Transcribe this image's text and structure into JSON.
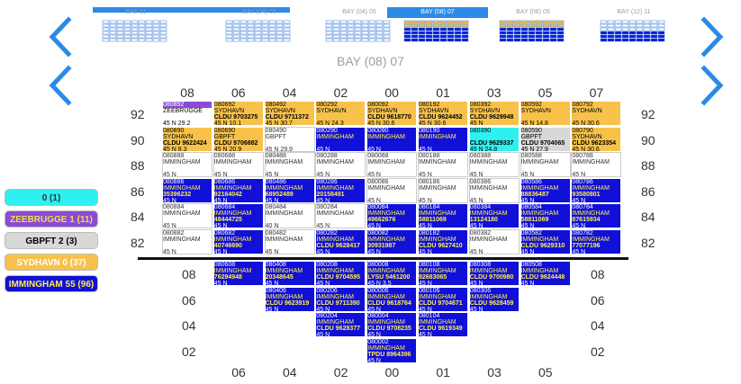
{
  "thumbnails": [
    {
      "label": "BAY 01"
    },
    {
      "label": "BAY (04) 03"
    },
    {
      "label": "BAY (04) 05"
    },
    {
      "label": "BAY (08) 07"
    },
    {
      "label": "BAY (08) 09"
    },
    {
      "label": "BAY (12) 11"
    }
  ],
  "active_thumb": "BAY (08) 07",
  "bay_title": "BAY (08) 07",
  "deck_columns": [
    "08",
    "06",
    "04",
    "02",
    "00",
    "01",
    "03",
    "05",
    "07"
  ],
  "deck_rows": [
    "92",
    "90",
    "88",
    "86",
    "84",
    "82"
  ],
  "hold_columns": [
    "06",
    "04",
    "02",
    "00",
    "01",
    "03",
    "05"
  ],
  "hold_rows": [
    "08",
    "06",
    "04",
    "02"
  ],
  "legend": [
    {
      "label": "0 (1)",
      "color": "#2ff0f0",
      "text": "#333"
    },
    {
      "label": "ZEEBRUGGE 1 (11)",
      "color": "#8b4ad8",
      "text": "#e8e04a"
    },
    {
      "label": "GBPFT 2 (3)",
      "color": "#d8d8d8",
      "text": "#000"
    },
    {
      "label": "SYDHAVN 0 (37)",
      "color": "#f8c24a",
      "text": "#fff"
    },
    {
      "label": "IMMINGHAM 55 (96)",
      "color": "#1010d8",
      "text": "#ffef4a"
    }
  ],
  "cells": [
    {
      "r": 0,
      "c": 0,
      "style": "purple",
      "id": "080892",
      "port": "ZEEBRUGGE",
      "cont": "",
      "info": "45    N    29.2"
    },
    {
      "r": 0,
      "c": 1,
      "style": "yellow",
      "id": "080692",
      "port": "SYDHAVN",
      "cont": "CLDU 9703275",
      "info": "45    N    10.1"
    },
    {
      "r": 0,
      "c": 2,
      "style": "yellow",
      "id": "080492",
      "port": "SYDHAVN",
      "cont": "CLDU 9711372",
      "info": "45    N    30.7"
    },
    {
      "r": 0,
      "c": 3,
      "style": "yellow",
      "id": "080292",
      "port": "SYDHAVN",
      "cont": "",
      "info": "45    N    24.3"
    },
    {
      "r": 0,
      "c": 4,
      "style": "yellow",
      "id": "080092",
      "port": "SYDHAVN",
      "cont": "CLDU 9618770",
      "info": "45    N    30.6"
    },
    {
      "r": 0,
      "c": 5,
      "style": "yellow",
      "id": "080192",
      "port": "SYDHAVN",
      "cont": "CLDU 9624452",
      "info": "45    N    30.6"
    },
    {
      "r": 0,
      "c": 6,
      "style": "yellow",
      "id": "080392",
      "port": "SYDHAVN",
      "cont": "CLDU 9629948",
      "info": "45    N"
    },
    {
      "r": 0,
      "c": 7,
      "style": "yellow",
      "id": "080592",
      "port": "SYDHAVN",
      "cont": "",
      "info": "45    N    14.8"
    },
    {
      "r": 0,
      "c": 8,
      "style": "yellow",
      "id": "080792",
      "port": "SYDHAVN",
      "cont": "",
      "info": "45    N    30.6"
    },
    {
      "r": 1,
      "c": 0,
      "style": "yellow",
      "id": "080890",
      "port": "SYDHAVN",
      "cont": "CLDU 9622424",
      "info": "45    N    8.3"
    },
    {
      "r": 1,
      "c": 1,
      "style": "yellow",
      "id": "080690",
      "port": "GBPFT",
      "cont": "CLDU 9706882",
      "info": "45    N    20.9"
    },
    {
      "r": 1,
      "c": 2,
      "style": "white",
      "id": "080490",
      "port": "GBPFT",
      "cont": "",
      "info": "45    N    29.9"
    },
    {
      "r": 1,
      "c": 3,
      "style": "blue",
      "id": "080290",
      "port": "IMMINGHAM",
      "cont": "",
      "info": "45    N"
    },
    {
      "r": 1,
      "c": 4,
      "style": "blue",
      "id": "080090",
      "port": "IMMINGHAM",
      "cont": "",
      "info": "45    N"
    },
    {
      "r": 1,
      "c": 5,
      "style": "blue",
      "id": "080190",
      "port": "IMMINGHAM",
      "cont": "",
      "info": "45    N"
    },
    {
      "r": 1,
      "c": 6,
      "style": "cyan",
      "id": "080390",
      "port": "",
      "cont": "CLDU 9629337",
      "info": "45    N    24.8"
    },
    {
      "r": 1,
      "c": 7,
      "style": "gray",
      "id": "080590",
      "port": "GBPFT",
      "cont": "CLDU 9704065",
      "info": "45    N    27.9"
    },
    {
      "r": 1,
      "c": 8,
      "style": "yellow",
      "id": "080790",
      "port": "SYDHAVN",
      "cont": "CLDU 9623354",
      "info": "45    N    30.6"
    },
    {
      "r": 2,
      "c": 0,
      "style": "white",
      "id": "080888",
      "port": "IMMINGHAM",
      "cont": "",
      "info": "45    N"
    },
    {
      "r": 2,
      "c": 1,
      "style": "white",
      "id": "080688",
      "port": "IMMINGHAM",
      "cont": "",
      "info": "45    N"
    },
    {
      "r": 2,
      "c": 2,
      "style": "white",
      "id": "080488",
      "port": "IMMINGHAM",
      "cont": "",
      "info": "45    N"
    },
    {
      "r": 2,
      "c": 3,
      "style": "white",
      "id": "080288",
      "port": "IMMINGHAM",
      "cont": "",
      "info": "45    N"
    },
    {
      "r": 2,
      "c": 4,
      "style": "white",
      "id": "080088",
      "port": "IMMINGHAM",
      "cont": "",
      "info": "45    N"
    },
    {
      "r": 2,
      "c": 5,
      "style": "white",
      "id": "080188",
      "port": "IMMINGHAM",
      "cont": "",
      "info": "45    N"
    },
    {
      "r": 2,
      "c": 6,
      "style": "white",
      "id": "080388",
      "port": "IMMINGHAM",
      "cont": "",
      "info": "45    N"
    },
    {
      "r": 2,
      "c": 7,
      "style": "white",
      "id": "080588",
      "port": "IMMINGHAM",
      "cont": "",
      "info": "45    N"
    },
    {
      "r": 2,
      "c": 8,
      "style": "white",
      "id": "080788",
      "port": "IMMINGHAM",
      "cont": "",
      "info": "45    N"
    },
    {
      "r": 3,
      "c": 0,
      "style": "blue",
      "id": "080886",
      "port": "IMMINGHAM",
      "cont": "35396232",
      "info": "45    N"
    },
    {
      "r": 3,
      "c": 1,
      "style": "blue",
      "id": "080686",
      "port": "IMMINGHAM",
      "cont": "92164042",
      "info": "45    N"
    },
    {
      "r": 3,
      "c": 2,
      "style": "blue",
      "id": "080486",
      "port": "IMMINGHAM",
      "cont": "68952489",
      "info": "45    N"
    },
    {
      "r": 3,
      "c": 3,
      "style": "blue",
      "id": "080286",
      "port": "IMMINGHAM",
      "cont": "20158491",
      "info": "45    N"
    },
    {
      "r": 3,
      "c": 4,
      "style": "white",
      "id": "080086",
      "port": "IMMINGHAM",
      "cont": "",
      "info": "45    N"
    },
    {
      "r": 3,
      "c": 5,
      "style": "white",
      "id": "080186",
      "port": "IMMINGHAM",
      "cont": "",
      "info": "45    N"
    },
    {
      "r": 3,
      "c": 6,
      "style": "white",
      "id": "080386",
      "port": "IMMINGHAM",
      "cont": "",
      "info": "45    N"
    },
    {
      "r": 3,
      "c": 7,
      "style": "blue",
      "id": "080586",
      "port": "IMMINGHAM",
      "cont": "88836487",
      "info": "45    N"
    },
    {
      "r": 3,
      "c": 8,
      "style": "blue",
      "id": "080786",
      "port": "IMMINGHAM",
      "cont": "93580801",
      "info": "45    N"
    },
    {
      "r": 4,
      "c": 0,
      "style": "white",
      "id": "080884",
      "port": "IMMINGHAM",
      "cont": "",
      "info": "45    N"
    },
    {
      "r": 4,
      "c": 1,
      "style": "blue",
      "id": "080684",
      "port": "IMMINGHAM",
      "cont": "48444725",
      "info": "45    N"
    },
    {
      "r": 4,
      "c": 2,
      "style": "white",
      "id": "080484",
      "port": "IMMINGHAM",
      "cont": "",
      "info": "40    N"
    },
    {
      "r": 4,
      "c": 3,
      "style": "white",
      "id": "080284",
      "port": "IMMINGHAM",
      "cont": "",
      "info": "45    N"
    },
    {
      "r": 4,
      "c": 4,
      "style": "blue",
      "id": "080084",
      "port": "IMMINGHAM",
      "cont": "49662676",
      "info": "45    N"
    },
    {
      "r": 4,
      "c": 5,
      "style": "blue",
      "id": "080184",
      "port": "IMMINGHAM",
      "cont": "58811069",
      "info": "45    N"
    },
    {
      "r": 4,
      "c": 6,
      "style": "blue",
      "id": "080384",
      "port": "IMMINGHAM",
      "cont": "13124180",
      "info": "45    N"
    },
    {
      "r": 4,
      "c": 7,
      "style": "blue",
      "id": "080584",
      "port": "IMMINGHAM",
      "cont": "58811069",
      "info": "45    N"
    },
    {
      "r": 4,
      "c": 8,
      "style": "blue",
      "id": "080784",
      "port": "IMMINGHAM",
      "cont": "87615934",
      "info": "45    N"
    },
    {
      "r": 5,
      "c": 0,
      "style": "white",
      "id": "080882",
      "port": "IMMINGHAM",
      "cont": "",
      "info": "45    N"
    },
    {
      "r": 5,
      "c": 1,
      "style": "blue",
      "id": "080682",
      "port": "IMMINGHAM",
      "cont": "40746690",
      "info": "45    N"
    },
    {
      "r": 5,
      "c": 2,
      "style": "white",
      "id": "080482",
      "port": "IMMINGHAM",
      "cont": "",
      "info": "45    N"
    },
    {
      "r": 5,
      "c": 3,
      "style": "blue",
      "id": "080282",
      "port": "IMMINGHAM",
      "cont": "CLDU 9628417",
      "info": "45    N"
    },
    {
      "r": 5,
      "c": 4,
      "style": "blue",
      "id": "080082",
      "port": "IMMINGHAM",
      "cont": "30931987",
      "info": "45    N"
    },
    {
      "r": 5,
      "c": 5,
      "style": "blue",
      "id": "080182",
      "port": "IMMINGHAM",
      "cont": "CLDU 9627410",
      "info": "45    N"
    },
    {
      "r": 5,
      "c": 6,
      "style": "white",
      "id": "080382",
      "port": "IMMINGHAM",
      "cont": "",
      "info": "45    N"
    },
    {
      "r": 5,
      "c": 7,
      "style": "blue",
      "id": "080582",
      "port": "IMMINGHAM",
      "cont": "CLDU 9629310",
      "info": "45    N"
    },
    {
      "r": 5,
      "c": 8,
      "style": "blue",
      "id": "080782",
      "port": "IMMINGHAM",
      "cont": "77077196",
      "info": "45    N"
    }
  ],
  "hold_cells": [
    {
      "r": 0,
      "c": 1,
      "style": "blue",
      "id": "080608",
      "port": "IMMINGHAM",
      "cont": "76294948",
      "info": "45    N"
    },
    {
      "r": 0,
      "c": 2,
      "style": "blue",
      "id": "080408",
      "port": "IMMINGHAM",
      "cont": "20348645",
      "info": "45    N"
    },
    {
      "r": 0,
      "c": 3,
      "style": "blue",
      "id": "080208",
      "port": "IMMINGHAM",
      "cont": "CLDU 9704595",
      "info": "45    N"
    },
    {
      "r": 0,
      "c": 4,
      "style": "blue",
      "id": "080008",
      "port": "IMMINGHAM",
      "cont": "LYSU 5461200",
      "info": "45    N    3.5"
    },
    {
      "r": 0,
      "c": 5,
      "style": "blue",
      "id": "080108",
      "port": "IMMINGHAM",
      "cont": "92683065",
      "info": "45    N"
    },
    {
      "r": 0,
      "c": 6,
      "style": "blue",
      "id": "080308",
      "port": "IMMINGHAM",
      "cont": "CLDU 9700980",
      "info": "45    N"
    },
    {
      "r": 0,
      "c": 7,
      "style": "blue",
      "id": "080508",
      "port": "IMMINGHAM",
      "cont": "CLDU 9624448",
      "info": "45    N"
    },
    {
      "r": 1,
      "c": 2,
      "style": "blue",
      "id": "080406",
      "port": "IMMINGHAM",
      "cont": "CLDU 9623919",
      "info": "45    N"
    },
    {
      "r": 1,
      "c": 3,
      "style": "blue",
      "id": "080206",
      "port": "IMMINGHAM",
      "cont": "CLDU 9711390",
      "info": "45    N"
    },
    {
      "r": 1,
      "c": 4,
      "style": "blue",
      "id": "080006",
      "port": "IMMINGHAM",
      "cont": "CLDU 9618764",
      "info": "45    N"
    },
    {
      "r": 1,
      "c": 5,
      "style": "blue",
      "id": "080106",
      "port": "IMMINGHAM",
      "cont": "CLDU 9704671",
      "info": "45    N"
    },
    {
      "r": 1,
      "c": 6,
      "style": "blue",
      "id": "080306",
      "port": "IMMINGHAM",
      "cont": "CLDU 9628459",
      "info": "45    N"
    },
    {
      "r": 2,
      "c": 3,
      "style": "blue",
      "id": "080204",
      "port": "IMMINGHAM",
      "cont": "CLDU 9628377",
      "info": "45    N"
    },
    {
      "r": 2,
      "c": 4,
      "style": "blue",
      "id": "080004",
      "port": "IMMINGHAM",
      "cont": "CLDU 9708235",
      "info": "45    N"
    },
    {
      "r": 2,
      "c": 5,
      "style": "blue",
      "id": "080104",
      "port": "IMMINGHAM",
      "cont": "CLDU 9619349",
      "info": "45    N"
    },
    {
      "r": 3,
      "c": 4,
      "style": "blue",
      "id": "080002",
      "port": "IMMINGHAM",
      "cont": "TPDU 8964396",
      "info": "45    N"
    }
  ]
}
